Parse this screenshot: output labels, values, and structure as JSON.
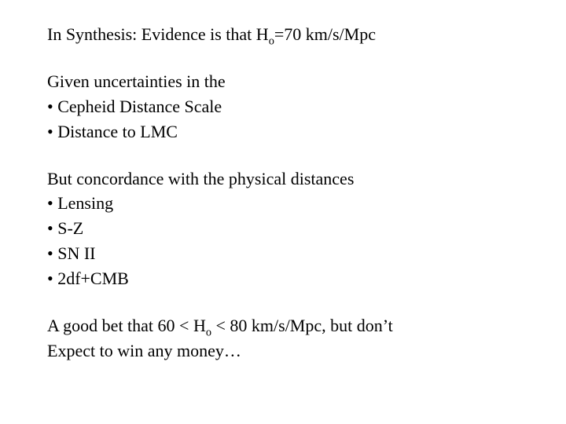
{
  "text_color": "#000000",
  "background_color": "#ffffff",
  "font_family": "Georgia, 'Times New Roman', serif",
  "base_font_size_pt": 17,
  "title": {
    "prefix": "In Synthesis: Evidence is that H",
    "sub": "o",
    "suffix": "=70 km/s/Mpc"
  },
  "section1": {
    "intro": "Given uncertainties in the",
    "bullets": [
      "Cepheid Distance Scale",
      "Distance to LMC"
    ]
  },
  "section2": {
    "intro": "But concordance with the physical distances",
    "bullets": [
      "Lensing",
      "S-Z",
      "SN II",
      "2df+CMB"
    ]
  },
  "conclusion": {
    "line1_prefix": "A good bet that   60 < H",
    "line1_sub": "o",
    "line1_suffix": " < 80 km/s/Mpc, but don’t",
    "line2": "Expect to win any money…"
  }
}
